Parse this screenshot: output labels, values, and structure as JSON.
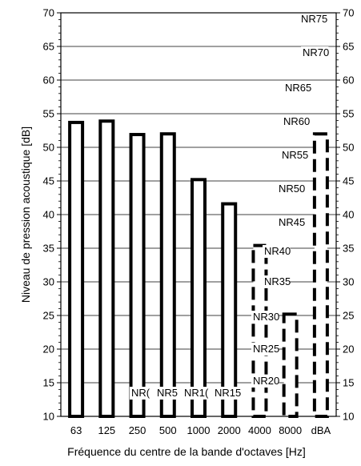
{
  "chart_data": {
    "type": "bar",
    "xlabel": "Fréquence du centre de la bande d'octaves [Hz]",
    "ylabel": "Niveau de pression acoustique [dB]",
    "ylim": [
      10,
      70
    ],
    "yticks": [
      10,
      15,
      20,
      25,
      30,
      35,
      40,
      45,
      50,
      55,
      60,
      65,
      70
    ],
    "categories": [
      "63",
      "125",
      "250",
      "500",
      "1000",
      "2000",
      "4000",
      "8000",
      "dBA"
    ],
    "values": [
      53.7,
      53.9,
      51.9,
      52.0,
      45.2,
      41.6,
      35.4,
      25.2,
      52.0
    ],
    "bar_style": [
      "solid",
      "solid",
      "solid",
      "solid",
      "solid",
      "solid",
      "dashed",
      "dashed",
      "dashed"
    ],
    "grid": true,
    "nr_curves": {
      "labels": [
        "NR0",
        "NR5",
        "NR10",
        "NR15",
        "NR20",
        "NR25",
        "NR30",
        "NR35",
        "NR40",
        "NR45",
        "NR50",
        "NR55",
        "NR60",
        "NR65",
        "NR70",
        "NR75"
      ],
      "displayed_labels": [
        "NR(",
        "NR5",
        "NR1(",
        "NR15",
        "NR20",
        "NR25",
        "NR30",
        "NR35",
        "NR40",
        "NR45",
        "NR50",
        "NR55",
        "NR60",
        "NR65",
        "NR70",
        "NR75"
      ]
    }
  }
}
